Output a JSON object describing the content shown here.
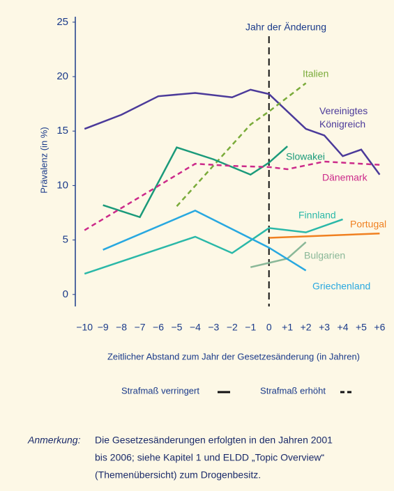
{
  "chart_data": {
    "type": "line",
    "y_label": "Prävalenz (in %)",
    "x_label": "Zeitlicher Abstand zum Jahr der Gesetzesänderung (in Jahren)",
    "annotation": "Jahr der Änderung",
    "xlim": [
      -10.5,
      6.4
    ],
    "ylim": [
      -1.1,
      25.5
    ],
    "yticks": [
      0,
      5,
      10,
      15,
      20,
      25
    ],
    "xticks": [
      {
        "value": -10,
        "label": "−10"
      },
      {
        "value": -9,
        "label": "−9"
      },
      {
        "value": -8,
        "label": "−8"
      },
      {
        "value": -7,
        "label": "−7"
      },
      {
        "value": -6,
        "label": "−6"
      },
      {
        "value": -5,
        "label": "−5"
      },
      {
        "value": -4,
        "label": "−4"
      },
      {
        "value": -3,
        "label": "−3"
      },
      {
        "value": -2,
        "label": "−2"
      },
      {
        "value": -1,
        "label": "−1"
      },
      0,
      {
        "value": 1,
        "label": "+1"
      },
      {
        "value": 2,
        "label": "+2"
      },
      {
        "value": 3,
        "label": "+3"
      },
      {
        "value": 4,
        "label": "+4"
      },
      {
        "value": 5,
        "label": "+5"
      },
      {
        "value": 6,
        "label": "+6"
      }
    ],
    "series": [
      {
        "name": "Vereinigtes Königreich",
        "color": "#4b3a9a",
        "dashed": false,
        "x": [
          -10,
          -8,
          -6,
          -4,
          -2,
          -1,
          0,
          2,
          3,
          4,
          5,
          6
        ],
        "values": [
          15.2,
          16.5,
          18.2,
          18.5,
          18.1,
          18.8,
          18.4,
          15.2,
          14.6,
          12.7,
          13.3,
          11.0
        ]
      },
      {
        "name": "Italien",
        "color": "#7aab3a",
        "dashed": true,
        "x": [
          -5,
          -1,
          0,
          2
        ],
        "values": [
          8.1,
          15.6,
          16.8,
          19.4
        ]
      },
      {
        "name": "Slowakei",
        "color": "#1a9a7a",
        "dashed": false,
        "x": [
          -9,
          -7,
          -5,
          -3,
          -1,
          0,
          1
        ],
        "values": [
          8.2,
          7.1,
          13.5,
          12.4,
          11.0,
          12.1,
          13.6
        ]
      },
      {
        "name": "Dänemark",
        "color": "#cc2a8a",
        "dashed": true,
        "x": [
          -10,
          -4,
          -2,
          0,
          1,
          3,
          6
        ],
        "values": [
          5.9,
          12.0,
          11.8,
          11.7,
          11.5,
          12.2,
          11.9
        ]
      },
      {
        "name": "Finnland",
        "color": "#2ab8a8",
        "dashed": false,
        "x": [
          -10,
          -4,
          -2,
          0,
          2,
          4
        ],
        "values": [
          1.9,
          5.3,
          3.8,
          6.1,
          5.7,
          6.9
        ]
      },
      {
        "name": "Portugal",
        "color": "#f08020",
        "dashed": false,
        "x": [
          0,
          6
        ],
        "values": [
          5.2,
          5.6
        ]
      },
      {
        "name": "Bulgarien",
        "color": "#8ab898",
        "dashed": false,
        "x": [
          -1,
          1,
          2
        ],
        "values": [
          2.5,
          3.3,
          4.8
        ]
      },
      {
        "name": "Griechenland",
        "color": "#28a8e0",
        "dashed": false,
        "x": [
          -9,
          -4,
          0,
          2
        ],
        "values": [
          4.1,
          7.7,
          4.3,
          2.2
        ]
      }
    ],
    "legend": [
      "Strafmaß verringert",
      "Strafmaß erhöht"
    ],
    "note": {
      "label": "Anmerkung:",
      "lines": [
        "Die Gesetzesänderungen erfolgten in den Jahren 2001",
        "bis 2006; siehe Kapitel 1 und ELDD „Topic Overview“",
        "(Themenübersicht) zum Drogenbesitz."
      ]
    }
  }
}
